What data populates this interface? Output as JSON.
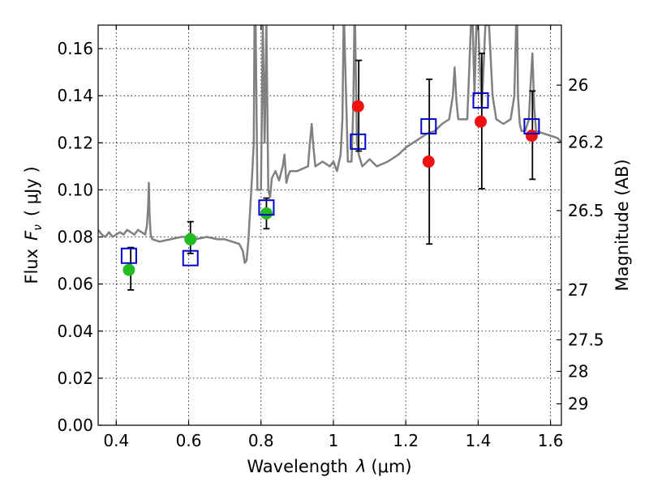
{
  "chart_data": {
    "type": "scatter",
    "title": "",
    "xlabel_prefix": "Wavelength",
    "xlabel_symbol": "λ",
    "xlabel_unit": "(μm)",
    "ylabel_prefix": "Flux",
    "ylabel_symbol": "F",
    "ylabel_subscript": "ν",
    "ylabel_unit": "( μJy )",
    "y2label": "Magnitude (AB)",
    "xlim": [
      0.35,
      1.63
    ],
    "ylim": [
      0.0,
      0.17
    ],
    "grid": true,
    "xticks": [
      0.4,
      0.6,
      0.8,
      1.0,
      1.2,
      1.4,
      1.6
    ],
    "xtick_labels": [
      "0.4",
      "0.6",
      "0.8",
      "1",
      "1.2",
      "1.4",
      "1.6"
    ],
    "yticks": [
      0.0,
      0.02,
      0.04,
      0.06,
      0.08,
      0.1,
      0.12,
      0.14,
      0.16
    ],
    "ytick_labels": [
      "0.00",
      "0.02",
      "0.04",
      "0.06",
      "0.08",
      "0.10",
      "0.12",
      "0.14",
      "0.16"
    ],
    "y2ticks": [
      {
        "label": "26",
        "flux": 0.1445
      },
      {
        "label": "26.2",
        "flux": 0.1202
      },
      {
        "label": "26.5",
        "flux": 0.0912
      },
      {
        "label": "27",
        "flux": 0.0575
      },
      {
        "label": "27.5",
        "flux": 0.0363
      },
      {
        "label": "28",
        "flux": 0.0229
      },
      {
        "label": "29",
        "flux": 0.0091
      }
    ],
    "series": [
      {
        "name": "model spectrum",
        "kind": "line",
        "color": "#808080",
        "x": [
          0.35,
          0.36,
          0.37,
          0.38,
          0.39,
          0.4,
          0.41,
          0.42,
          0.43,
          0.44,
          0.45,
          0.46,
          0.47,
          0.48,
          0.485,
          0.488,
          0.49,
          0.492,
          0.495,
          0.5,
          0.52,
          0.55,
          0.58,
          0.6,
          0.62,
          0.65,
          0.68,
          0.7,
          0.72,
          0.74,
          0.75,
          0.755,
          0.76,
          0.765,
          0.77,
          0.775,
          0.78,
          0.782,
          0.785,
          0.79,
          0.8,
          0.805,
          0.81,
          0.815,
          0.82,
          0.825,
          0.83,
          0.84,
          0.85,
          0.86,
          0.865,
          0.87,
          0.875,
          0.88,
          0.9,
          0.93,
          0.935,
          0.94,
          0.945,
          0.95,
          0.97,
          0.99,
          1.0,
          1.01,
          1.02,
          1.025,
          1.028,
          1.03,
          1.035,
          1.04,
          1.05,
          1.055,
          1.058,
          1.06,
          1.062,
          1.065,
          1.07,
          1.08,
          1.1,
          1.12,
          1.15,
          1.18,
          1.2,
          1.22,
          1.24,
          1.26,
          1.28,
          1.3,
          1.32,
          1.33,
          1.335,
          1.34,
          1.345,
          1.35,
          1.37,
          1.38,
          1.385,
          1.39,
          1.395,
          1.4,
          1.41,
          1.42,
          1.43,
          1.44,
          1.45,
          1.47,
          1.49,
          1.5,
          1.505,
          1.508,
          1.51,
          1.515,
          1.52,
          1.53,
          1.54,
          1.545,
          1.55,
          1.555,
          1.56,
          1.58,
          1.6,
          1.62,
          1.63
        ],
        "y": [
          0.083,
          0.081,
          0.08,
          0.082,
          0.08,
          0.081,
          0.082,
          0.081,
          0.083,
          0.082,
          0.081,
          0.083,
          0.082,
          0.081,
          0.085,
          0.093,
          0.103,
          0.09,
          0.081,
          0.079,
          0.078,
          0.079,
          0.08,
          0.08,
          0.079,
          0.08,
          0.079,
          0.079,
          0.078,
          0.077,
          0.074,
          0.069,
          0.07,
          0.078,
          0.092,
          0.105,
          0.12,
          0.17,
          0.17,
          0.1,
          0.1,
          0.17,
          0.12,
          0.17,
          0.1,
          0.097,
          0.105,
          0.108,
          0.104,
          0.11,
          0.115,
          0.103,
          0.106,
          0.108,
          0.108,
          0.11,
          0.12,
          0.128,
          0.118,
          0.11,
          0.112,
          0.11,
          0.112,
          0.108,
          0.115,
          0.13,
          0.17,
          0.17,
          0.14,
          0.112,
          0.112,
          0.135,
          0.17,
          0.17,
          0.15,
          0.12,
          0.115,
          0.11,
          0.113,
          0.11,
          0.112,
          0.115,
          0.118,
          0.12,
          0.122,
          0.124,
          0.125,
          0.128,
          0.13,
          0.14,
          0.152,
          0.138,
          0.13,
          0.13,
          0.13,
          0.17,
          0.17,
          0.14,
          0.17,
          0.17,
          0.135,
          0.17,
          0.17,
          0.14,
          0.13,
          0.128,
          0.13,
          0.14,
          0.17,
          0.17,
          0.14,
          0.128,
          0.125,
          0.125,
          0.13,
          0.145,
          0.158,
          0.135,
          0.125,
          0.124,
          0.123,
          0.122,
          0.12
        ]
      },
      {
        "name": "green points",
        "kind": "marker",
        "marker": "circle",
        "color": "#22bb22",
        "x": [
          0.435,
          0.605,
          0.815
        ],
        "y": [
          0.066,
          0.079,
          0.09
        ]
      },
      {
        "name": "red points",
        "kind": "marker",
        "marker": "circle",
        "color": "#ee1111",
        "x": [
          1.068,
          1.263,
          1.407,
          1.548
        ],
        "y": [
          0.1355,
          0.112,
          0.129,
          0.123
        ]
      },
      {
        "name": "blue squares",
        "kind": "marker",
        "marker": "square",
        "color": "#0000cc",
        "x": [
          0.435,
          0.605,
          0.815,
          1.068,
          1.263,
          1.407,
          1.548
        ],
        "y": [
          0.072,
          0.071,
          0.0925,
          0.1205,
          0.127,
          0.138,
          0.127
        ]
      },
      {
        "name": "error bars",
        "kind": "errorbar",
        "color": "#000000",
        "x": [
          0.44,
          0.605,
          0.815,
          1.07,
          1.265,
          1.41,
          1.55
        ],
        "ylow": [
          0.0575,
          0.073,
          0.0835,
          0.1165,
          0.077,
          0.1005,
          0.1045
        ],
        "yhigh": [
          0.0755,
          0.0865,
          0.0965,
          0.155,
          0.147,
          0.158,
          0.142
        ]
      }
    ]
  }
}
